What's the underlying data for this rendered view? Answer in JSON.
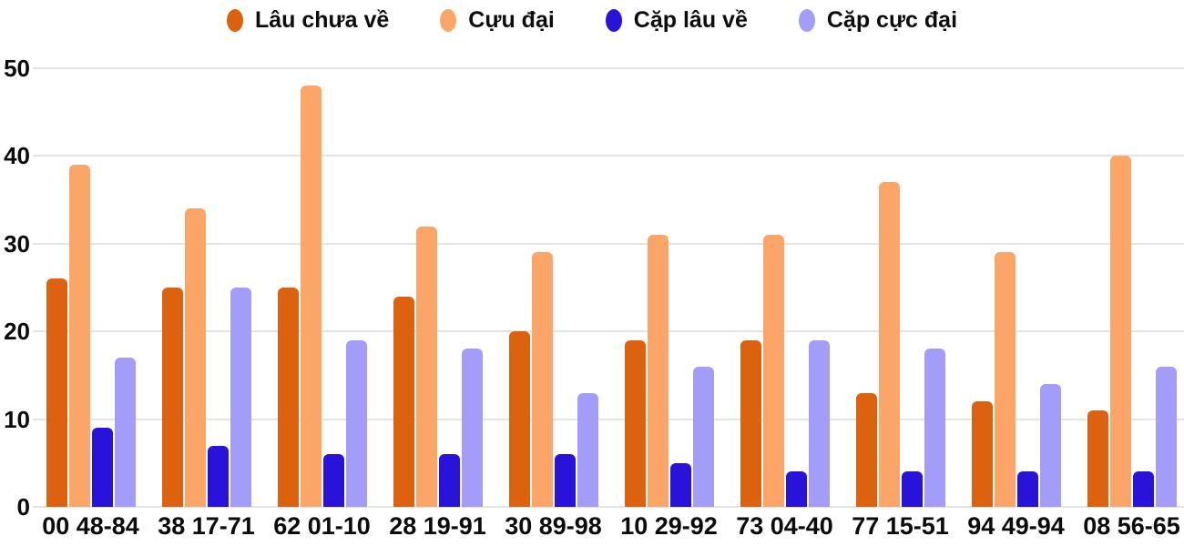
{
  "chart_data": {
    "type": "bar",
    "title": "",
    "xlabel": "",
    "ylabel": "",
    "categories": [
      "00 48-84",
      "38 17-71",
      "62 01-10",
      "28 19-91",
      "30 89-98",
      "10 29-92",
      "73 04-40",
      "77 15-51",
      "94 49-94",
      "08 56-65"
    ],
    "series": [
      {
        "name": "Lâu chưa về",
        "color": "#dc620f",
        "values": [
          26,
          25,
          25,
          24,
          20,
          19,
          19,
          13,
          12,
          11
        ]
      },
      {
        "name": "Cựu đại",
        "color": "#fca569",
        "values": [
          39,
          34,
          48,
          32,
          29,
          31,
          31,
          37,
          29,
          40
        ]
      },
      {
        "name": "Cặp lâu về",
        "color": "#2912d9",
        "values": [
          9,
          7,
          6,
          6,
          6,
          5,
          4,
          4,
          4,
          4
        ]
      },
      {
        "name": "Cặp cực đại",
        "color": "#a39cf8",
        "values": [
          17,
          25,
          19,
          18,
          13,
          16,
          19,
          18,
          14,
          16
        ]
      }
    ],
    "ylim": [
      0,
      50
    ],
    "yticks": [
      0,
      10,
      20,
      30,
      40,
      50
    ],
    "grid": "horizontal",
    "legend_position": "top"
  },
  "colors": {
    "gridline": "#e4e4e4",
    "text": "#0d0d0d",
    "background": "#ffffff"
  }
}
